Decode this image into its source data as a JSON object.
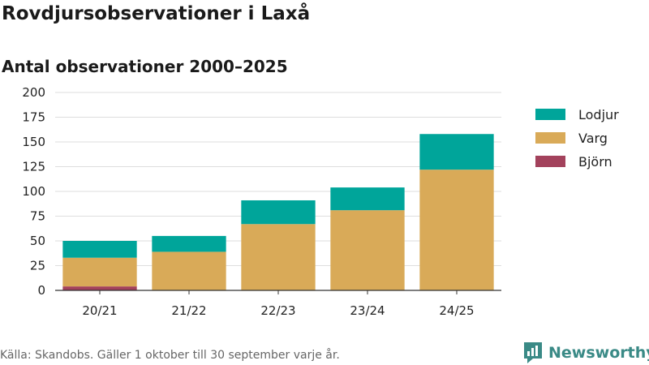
{
  "title": "Rovdjursobservationer i Laxå",
  "subtitle": "Antal observationer 2000–2025",
  "source": "Källa: Skandobs. Gäller 1 oktober till 30 september varje år.",
  "brand": "Newsworthy",
  "chart_data": {
    "type": "bar",
    "stacked": true,
    "categories": [
      "20/21",
      "21/22",
      "22/23",
      "23/24",
      "24/25"
    ],
    "series": [
      {
        "name": "Björn",
        "color": "#a3425c",
        "values": [
          4,
          0,
          0,
          0,
          0
        ]
      },
      {
        "name": "Varg",
        "color": "#d9aa58",
        "values": [
          29,
          39,
          67,
          81,
          122
        ]
      },
      {
        "name": "Lodjur",
        "color": "#00a59a",
        "values": [
          17,
          16,
          24,
          23,
          36
        ]
      }
    ],
    "legend_order": [
      "Lodjur",
      "Varg",
      "Björn"
    ],
    "y_ticks": [
      0,
      25,
      50,
      75,
      100,
      125,
      150,
      175,
      200
    ],
    "ylim": [
      0,
      200
    ],
    "legend_position": "right",
    "grid": true
  }
}
